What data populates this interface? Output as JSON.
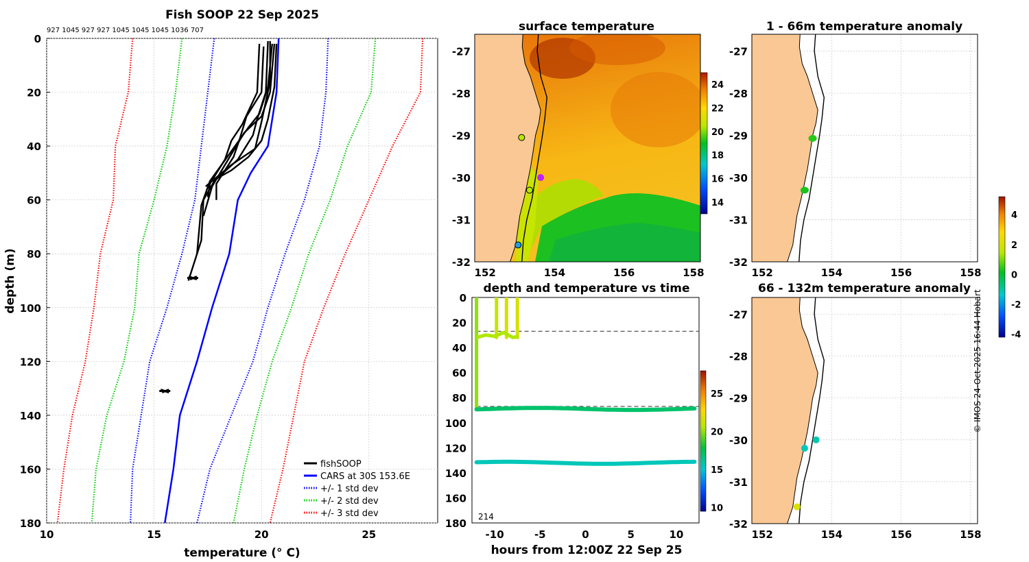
{
  "chart_data": [
    {
      "type": "line",
      "title": "Fish SOOP 22 Sep 2025",
      "top_annotation": "927 1045 927 927 1045 1045 1045 1036 707",
      "xlabel": "temperature (° C)",
      "ylabel": "depth (m)",
      "xlim": [
        10,
        28.2
      ],
      "ylim": [
        180,
        0
      ],
      "x_ticks": [
        10,
        15,
        20,
        25
      ],
      "y_ticks": [
        0,
        20,
        40,
        60,
        80,
        100,
        120,
        140,
        160,
        180
      ],
      "grid": true,
      "legend": {
        "position": "bottom-right",
        "entries": [
          "fishSOOP",
          "CARS at 30S 153.6E",
          "+/- 1 std dev",
          "+/- 2 std dev",
          "+/- 3 std dev"
        ]
      },
      "series": [
        {
          "name": "CARS at 30S 153.6E",
          "color": "#0000ff",
          "style": "solid",
          "points": [
            [
              20.8,
              0
            ],
            [
              20.7,
              20
            ],
            [
              20.3,
              40
            ],
            [
              19.5,
              50
            ],
            [
              18.9,
              60
            ],
            [
              18.5,
              80
            ],
            [
              17.7,
              100
            ],
            [
              17.0,
              120
            ],
            [
              16.2,
              140
            ],
            [
              15.9,
              160
            ],
            [
              15.5,
              180
            ]
          ]
        },
        {
          "name": "+1 std dev",
          "color": "#0000ff",
          "style": "dotted",
          "points": [
            [
              23.1,
              0
            ],
            [
              23.0,
              20
            ],
            [
              22.7,
              40
            ],
            [
              22.0,
              60
            ],
            [
              21.1,
              80
            ],
            [
              20.3,
              100
            ],
            [
              19.6,
              120
            ],
            [
              18.6,
              140
            ],
            [
              17.6,
              160
            ],
            [
              17.0,
              180
            ]
          ]
        },
        {
          "name": "-1 std dev",
          "color": "#0000ff",
          "style": "dotted",
          "points": [
            [
              17.8,
              0
            ],
            [
              17.5,
              20
            ],
            [
              17.2,
              40
            ],
            [
              16.9,
              60
            ],
            [
              16.3,
              80
            ],
            [
              15.6,
              100
            ],
            [
              14.8,
              120
            ],
            [
              14.4,
              140
            ],
            [
              14.0,
              160
            ],
            [
              13.9,
              180
            ]
          ]
        },
        {
          "name": "+2 std dev",
          "color": "#00cc00",
          "style": "dotted",
          "points": [
            [
              25.3,
              0
            ],
            [
              25.1,
              20
            ],
            [
              24.0,
              40
            ],
            [
              23.2,
              60
            ],
            [
              22.2,
              80
            ],
            [
              21.4,
              100
            ],
            [
              20.5,
              120
            ],
            [
              19.8,
              140
            ],
            [
              19.2,
              160
            ],
            [
              18.7,
              180
            ]
          ]
        },
        {
          "name": "-2 std dev",
          "color": "#00cc00",
          "style": "dotted",
          "points": [
            [
              16.3,
              0
            ],
            [
              16.0,
              20
            ],
            [
              15.6,
              40
            ],
            [
              15.0,
              60
            ],
            [
              14.3,
              80
            ],
            [
              14.1,
              100
            ],
            [
              13.6,
              120
            ],
            [
              12.8,
              140
            ],
            [
              12.3,
              160
            ],
            [
              12.1,
              180
            ]
          ]
        },
        {
          "name": "+3 std dev",
          "color": "#ff0000",
          "style": "dotted",
          "points": [
            [
              27.5,
              0
            ],
            [
              27.4,
              20
            ],
            [
              26.1,
              40
            ],
            [
              25.0,
              60
            ],
            [
              23.9,
              80
            ],
            [
              22.9,
              100
            ],
            [
              22.0,
              120
            ],
            [
              21.5,
              140
            ],
            [
              21.0,
              160
            ],
            [
              20.4,
              180
            ]
          ]
        },
        {
          "name": "-3 std dev",
          "color": "#ff0000",
          "style": "dotted",
          "points": [
            [
              14.0,
              0
            ],
            [
              13.8,
              20
            ],
            [
              13.2,
              40
            ],
            [
              13.1,
              60
            ],
            [
              12.5,
              80
            ],
            [
              12.2,
              100
            ],
            [
              11.8,
              120
            ],
            [
              11.2,
              140
            ],
            [
              10.8,
              160
            ],
            [
              10.5,
              180
            ]
          ]
        }
      ],
      "fishsoop_profiles": [
        [
          [
            20.3,
            1
          ],
          [
            20.2,
            20
          ],
          [
            19.8,
            30
          ],
          [
            19.6,
            36
          ],
          [
            18.9,
            45
          ],
          [
            17.8,
            53
          ],
          [
            17.3,
            60
          ],
          [
            17.2,
            75
          ],
          [
            16.6,
            90
          ]
        ],
        [
          [
            20.5,
            2
          ],
          [
            20.3,
            18
          ],
          [
            19.9,
            28
          ],
          [
            19.4,
            33
          ],
          [
            18.5,
            43
          ],
          [
            17.6,
            53
          ],
          [
            17.2,
            62
          ],
          [
            17.0,
            80
          ]
        ],
        [
          [
            20.6,
            2
          ],
          [
            20.4,
            20
          ],
          [
            20.0,
            29
          ],
          [
            19.2,
            35
          ],
          [
            18.3,
            47
          ],
          [
            17.7,
            55
          ],
          [
            17.3,
            66
          ]
        ],
        [
          [
            20.1,
            3
          ],
          [
            20.0,
            20
          ],
          [
            19.3,
            29
          ],
          [
            19.0,
            37
          ],
          [
            18.7,
            44
          ],
          [
            17.9,
            54
          ],
          [
            17.9,
            60
          ]
        ],
        [
          [
            20.7,
            2
          ],
          [
            20.6,
            18
          ],
          [
            20.3,
            30
          ],
          [
            20.0,
            38
          ],
          [
            19.4,
            44
          ],
          [
            18.6,
            49
          ],
          [
            17.7,
            53
          ]
        ],
        [
          [
            19.9,
            2
          ],
          [
            19.8,
            20
          ],
          [
            19.1,
            32
          ],
          [
            18.6,
            38
          ],
          [
            18.3,
            45
          ],
          [
            17.6,
            54
          ],
          [
            17.5,
            59
          ]
        ],
        [
          [
            20.4,
            1
          ],
          [
            20.4,
            16
          ],
          [
            20.0,
            31
          ],
          [
            19.7,
            41
          ],
          [
            18.6,
            47
          ],
          [
            17.4,
            55
          ]
        ]
      ],
      "fishsoop_bottom_clusters": [
        [
          16.8,
          89
        ],
        [
          15.5,
          131
        ]
      ]
    },
    {
      "type": "heatmap",
      "title": "surface temperature",
      "xlim": [
        151.7,
        158.2
      ],
      "ylim": [
        -32,
        -26.6
      ],
      "x_ticks": [
        152,
        154,
        156,
        158
      ],
      "y_ticks": [
        -27,
        -28,
        -29,
        -30,
        -31,
        -32
      ],
      "colorbar": {
        "min": 13,
        "max": 25,
        "ticks": [
          14,
          16,
          18,
          20,
          22,
          24
        ]
      },
      "markers": [
        [
          153.05,
          -29.05
        ],
        [
          153.28,
          -30.3
        ],
        [
          153.6,
          -30.0
        ],
        [
          152.95,
          -31.6
        ]
      ]
    },
    {
      "type": "scatter",
      "title": "depth and temperature vs time",
      "xlabel": "hours from 12:00Z 22 Sep 25",
      "xlim": [
        -12.5,
        12.5
      ],
      "ylim": [
        180,
        0
      ],
      "x_ticks": [
        -10,
        -5,
        0,
        5,
        10
      ],
      "y_ticks": [
        0,
        20,
        40,
        60,
        80,
        100,
        120,
        140,
        160,
        180
      ],
      "reference_depths": [
        27,
        87
      ],
      "corner_label": "214",
      "colorbar": {
        "min": 9.5,
        "max": 28,
        "ticks": [
          10,
          15,
          20,
          25
        ]
      },
      "tracks": [
        {
          "depth": 89,
          "temp": 17,
          "from": -12,
          "to": 12
        },
        {
          "depth": 132,
          "temp": 15.5,
          "from": -12,
          "to": 12
        }
      ]
    },
    {
      "type": "scatter",
      "title": "1 - 66m temperature anomaly",
      "xlim": [
        151.7,
        158.2
      ],
      "ylim": [
        -32,
        -26.6
      ],
      "x_ticks": [
        152,
        154,
        156,
        158
      ],
      "y_ticks": [
        -27,
        -28,
        -29,
        -30,
        -31,
        -32
      ],
      "points": [
        {
          "lon": 153.45,
          "lat": -29.07,
          "anom": 0.4
        },
        {
          "lon": 153.22,
          "lat": -30.3,
          "anom": 0.3
        }
      ]
    },
    {
      "type": "scatter",
      "title": "66 - 132m temperature anomaly",
      "xlim": [
        151.7,
        158.2
      ],
      "ylim": [
        -32,
        -26.6
      ],
      "x_ticks": [
        152,
        154,
        156,
        158
      ],
      "y_ticks": [
        -27,
        -28,
        -29,
        -30,
        -31,
        -32
      ],
      "points": [
        {
          "lon": 153.55,
          "lat": -30.0,
          "anom": -1.1
        },
        {
          "lon": 153.22,
          "lat": -30.2,
          "anom": -1.2
        },
        {
          "lon": 153.0,
          "lat": -31.6,
          "anom": 2.1
        }
      ]
    }
  ],
  "anomaly_colorbar": {
    "min": -4.2,
    "max": 5.2,
    "ticks": [
      -4,
      -2,
      0,
      2,
      4
    ]
  },
  "colors": {
    "land": "#f9c895",
    "coast": "#000000",
    "grid": "#c8c8c8"
  },
  "credit": "© IMOS 24-Oct-2025 16:44 Hobart"
}
